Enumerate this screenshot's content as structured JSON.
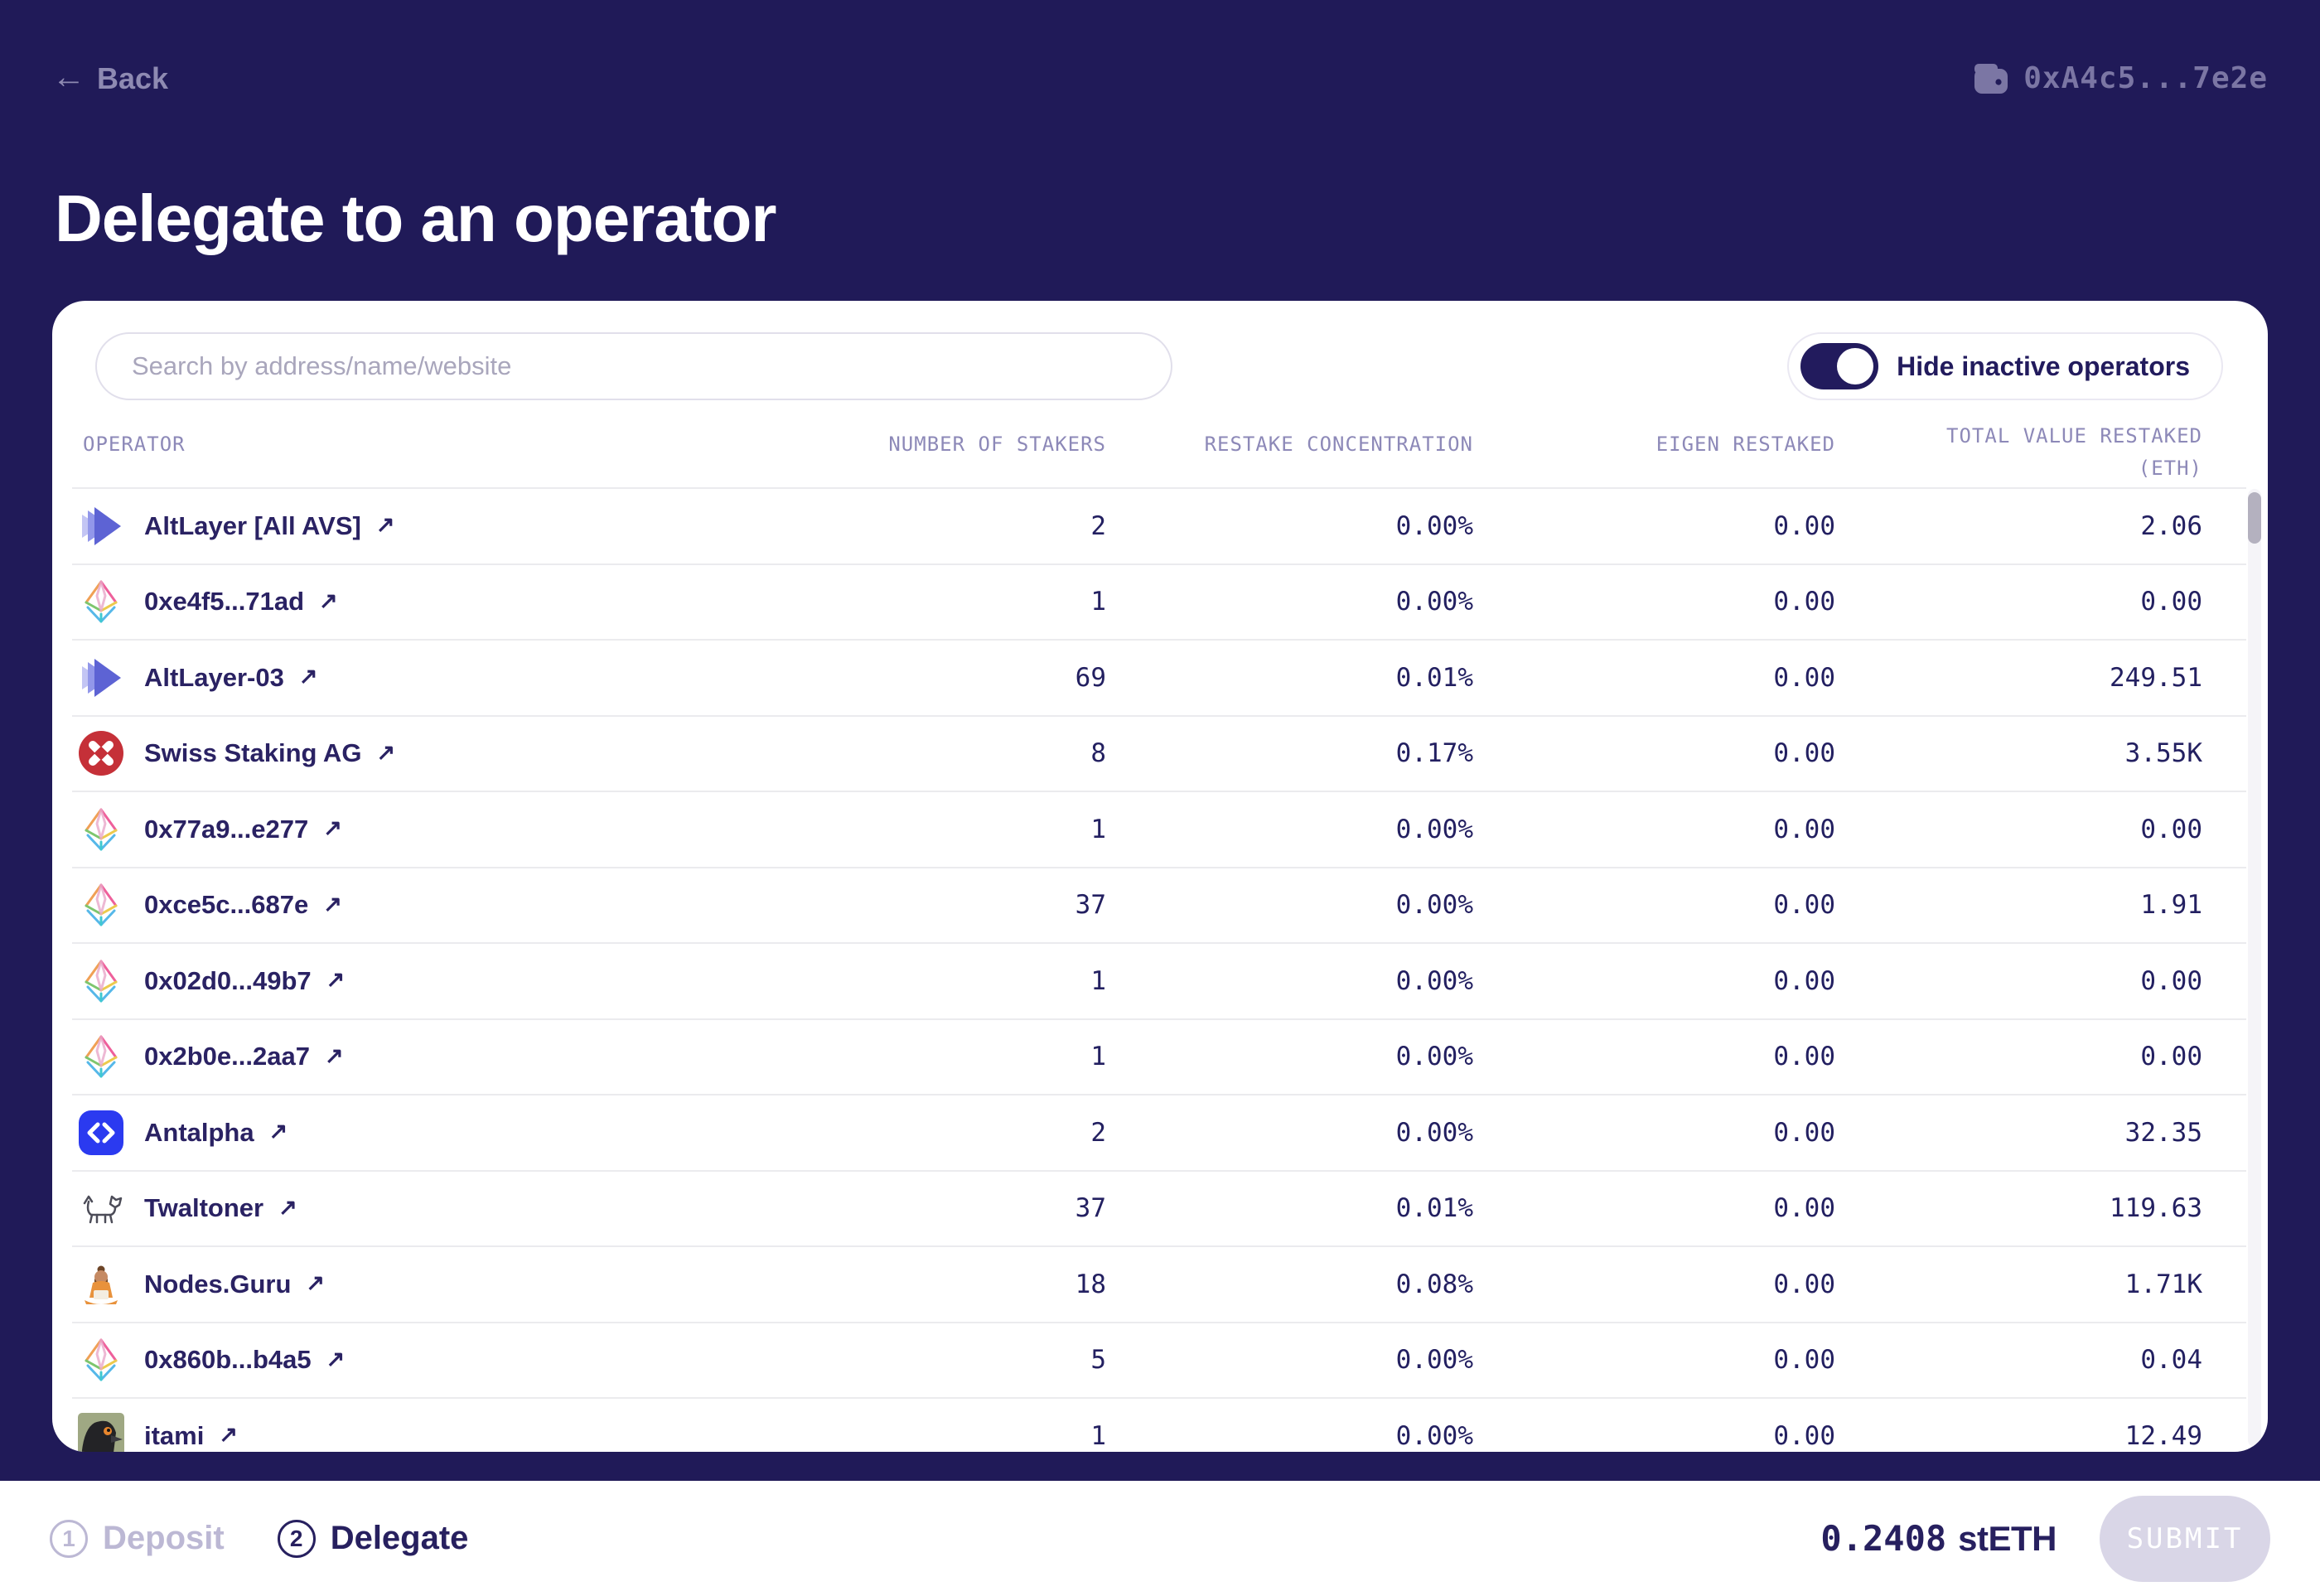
{
  "page": {
    "back_label": "Back",
    "wallet_address": "0xA4c5...7e2e",
    "title": "Delegate to an operator"
  },
  "card": {
    "search_placeholder": "Search by address/name/website",
    "toggle_label": "Hide inactive operators",
    "toggle_on": true,
    "columns": [
      {
        "label": "OPERATOR"
      },
      {
        "label": "NUMBER OF STAKERS"
      },
      {
        "label": "RESTAKE CONCENTRATION"
      },
      {
        "label": "EIGEN RESTAKED"
      },
      {
        "label": "TOTAL VALUE RESTAKED",
        "sublabel": "(ETH)"
      }
    ],
    "rows": [
      {
        "name": "AltLayer [All AVS]",
        "icon": "altlayer-logo",
        "stakers": "2",
        "concentration": "0.00%",
        "eigen": "0.00",
        "total": "2.06"
      },
      {
        "name": "0xe4f5...71ad",
        "icon": "eth-diamond-icon",
        "stakers": "1",
        "concentration": "0.00%",
        "eigen": "0.00",
        "total": "0.00"
      },
      {
        "name": "AltLayer-03",
        "icon": "altlayer-logo",
        "stakers": "69",
        "concentration": "0.01%",
        "eigen": "0.00",
        "total": "249.51"
      },
      {
        "name": "Swiss Staking AG",
        "icon": "swiss-staking-logo",
        "stakers": "8",
        "concentration": "0.17%",
        "eigen": "0.00",
        "total": "3.55K"
      },
      {
        "name": "0x77a9...e277",
        "icon": "eth-diamond-icon",
        "stakers": "1",
        "concentration": "0.00%",
        "eigen": "0.00",
        "total": "0.00"
      },
      {
        "name": "0xce5c...687e",
        "icon": "eth-diamond-icon",
        "stakers": "37",
        "concentration": "0.00%",
        "eigen": "0.00",
        "total": "1.91"
      },
      {
        "name": "0x02d0...49b7",
        "icon": "eth-diamond-icon",
        "stakers": "1",
        "concentration": "0.00%",
        "eigen": "0.00",
        "total": "0.00"
      },
      {
        "name": "0x2b0e...2aa7",
        "icon": "eth-diamond-icon",
        "stakers": "1",
        "concentration": "0.00%",
        "eigen": "0.00",
        "total": "0.00"
      },
      {
        "name": "Antalpha",
        "icon": "antalpha-logo",
        "stakers": "2",
        "concentration": "0.00%",
        "eigen": "0.00",
        "total": "32.35"
      },
      {
        "name": "Twaltoner",
        "icon": "twaltoner-logo",
        "stakers": "37",
        "concentration": "0.01%",
        "eigen": "0.00",
        "total": "119.63"
      },
      {
        "name": "Nodes.Guru",
        "icon": "nodes-guru-logo",
        "stakers": "18",
        "concentration": "0.08%",
        "eigen": "0.00",
        "total": "1.71K"
      },
      {
        "name": "0x860b...b4a5",
        "icon": "eth-diamond-icon",
        "stakers": "5",
        "concentration": "0.00%",
        "eigen": "0.00",
        "total": "0.04"
      },
      {
        "name": "itami",
        "icon": "itami-avatar",
        "stakers": "1",
        "concentration": "0.00%",
        "eigen": "0.00",
        "total": "12.49"
      }
    ]
  },
  "footer": {
    "steps": [
      {
        "number": "1",
        "label": "Deposit",
        "active": false
      },
      {
        "number": "2",
        "label": "Delegate",
        "active": true
      }
    ],
    "amount_value": "0.2408",
    "amount_unit": "stETH",
    "submit_label": "SUBMIT"
  },
  "colors": {
    "background_navy": "#201a58",
    "accent_navy": "#221b5d",
    "antalpha_blue": "#2b3af0",
    "swiss_red": "#c53038",
    "submit_disabled_bg": "#d9d6e7"
  }
}
